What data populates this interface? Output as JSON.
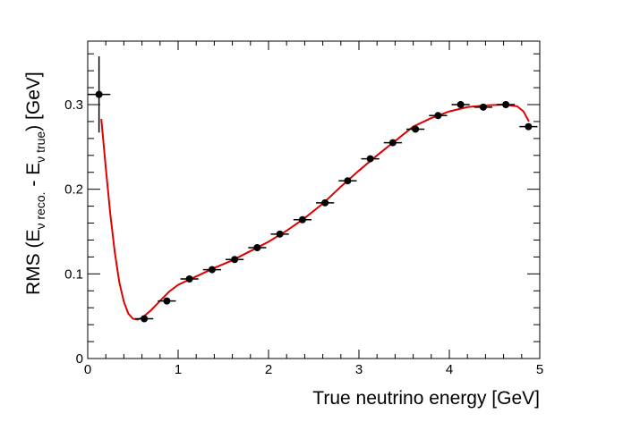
{
  "chart_data": {
    "type": "scatter",
    "title": "",
    "xlabel": "True neutrino energy [GeV]",
    "ylabel": {
      "prefix": "RMS (E",
      "sub1": "ν reco.",
      "mid": " - E",
      "sub2": "ν true",
      "suffix": ") [GeV]"
    },
    "xlim": [
      0,
      5
    ],
    "ylim": [
      0,
      0.375
    ],
    "x_ticks": [
      0,
      1,
      2,
      3,
      4,
      5
    ],
    "x_tick_labels": [
      "0",
      "1",
      "2",
      "3",
      "4",
      "5"
    ],
    "y_ticks": [
      0,
      0.1,
      0.2,
      0.3
    ],
    "y_tick_labels": [
      "0",
      "0.1",
      "0.2",
      "0.3"
    ],
    "grid": false,
    "legend": "none",
    "colors": {
      "points": "#000000",
      "fit": "#e00000"
    },
    "series": [
      {
        "kind": "points_with_errors",
        "x": [
          0.125,
          0.625,
          0.875,
          1.125,
          1.375,
          1.625,
          1.875,
          2.125,
          2.375,
          2.625,
          2.875,
          3.125,
          3.375,
          3.625,
          3.875,
          4.125,
          4.375,
          4.625,
          4.875
        ],
        "y": [
          0.312,
          0.047,
          0.068,
          0.094,
          0.105,
          0.117,
          0.131,
          0.147,
          0.164,
          0.184,
          0.21,
          0.236,
          0.255,
          0.271,
          0.287,
          0.3,
          0.297,
          0.3,
          0.274
        ],
        "x_err": [
          0.125,
          0.1,
          0.1,
          0.1,
          0.1,
          0.1,
          0.1,
          0.1,
          0.1,
          0.1,
          0.1,
          0.1,
          0.1,
          0.1,
          0.1,
          0.1,
          0.1,
          0.1,
          0.1
        ],
        "y_err": [
          0.045,
          0.003,
          0.003,
          0.003,
          0.003,
          0.003,
          0.003,
          0.003,
          0.003,
          0.003,
          0.003,
          0.003,
          0.003,
          0.003,
          0.003,
          0.003,
          0.003,
          0.003,
          0.003
        ]
      },
      {
        "kind": "fit_curve",
        "x": [
          0.15,
          0.2,
          0.25,
          0.3,
          0.35,
          0.4,
          0.45,
          0.5,
          0.55,
          0.6,
          0.7,
          0.8,
          0.9,
          1.0,
          1.2,
          1.4,
          1.6,
          1.8,
          2.0,
          2.2,
          2.4,
          2.6,
          2.8,
          3.0,
          3.2,
          3.4,
          3.6,
          3.8,
          4.0,
          4.2,
          4.4,
          4.6,
          4.75,
          4.82,
          4.88
        ],
        "y": [
          0.283,
          0.225,
          0.17,
          0.125,
          0.09,
          0.067,
          0.053,
          0.047,
          0.046,
          0.048,
          0.057,
          0.068,
          0.079,
          0.087,
          0.097,
          0.107,
          0.116,
          0.127,
          0.138,
          0.151,
          0.166,
          0.183,
          0.203,
          0.222,
          0.24,
          0.257,
          0.274,
          0.284,
          0.292,
          0.297,
          0.299,
          0.3,
          0.298,
          0.292,
          0.28
        ]
      }
    ]
  }
}
